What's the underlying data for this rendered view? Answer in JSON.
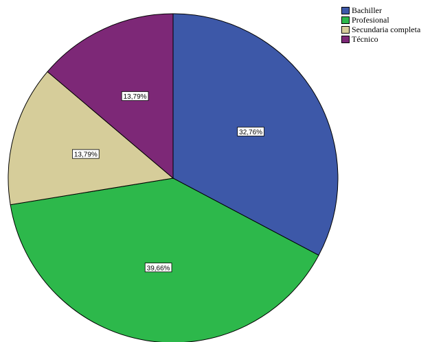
{
  "chart_data": {
    "type": "pie",
    "title": "",
    "slices": [
      {
        "label": "Bachiller",
        "value": 32.76,
        "display": "32,76%",
        "color": "#3d58a8"
      },
      {
        "label": "Profesional",
        "value": 39.66,
        "display": "39,66%",
        "color": "#2db84b"
      },
      {
        "label": "Secundaria completa",
        "value": 13.79,
        "display": "13,79%",
        "color": "#d6cd9a"
      },
      {
        "label": "Técnico",
        "value": 13.79,
        "display": "13,79%",
        "color": "#7d2877"
      }
    ],
    "start_angle_deg": 0,
    "direction": "clockwise",
    "legend_position": "top-right"
  }
}
